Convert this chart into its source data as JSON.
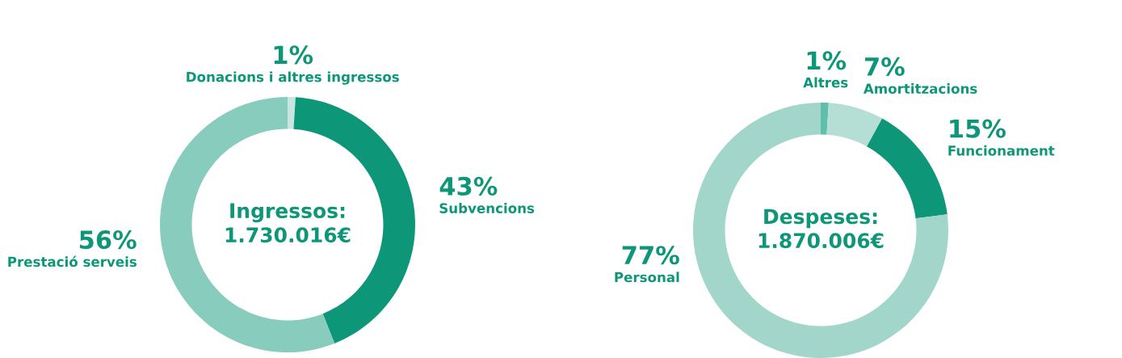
{
  "chart_data": [
    {
      "type": "donut",
      "title": "Ingressos:\n1.730.016€",
      "categories": [
        "Donacions i altres ingressos",
        "Subvencions",
        "Prestació serveis"
      ],
      "values": [
        1,
        43,
        56
      ],
      "colors": [
        "#c8e6df",
        "#0e9678",
        "#88ccbd"
      ],
      "value_labels": [
        "1%",
        "43%",
        "56%"
      ]
    },
    {
      "type": "donut",
      "title": "Despeses:\n1.870.006€",
      "categories": [
        "Altres",
        "Amortitzacions",
        "Funcionament",
        "Personal"
      ],
      "values": [
        1,
        7,
        15,
        77
      ],
      "colors": [
        "#5fbfa9",
        "#b5ded4",
        "#0e9678",
        "#a2d6cb"
      ],
      "value_labels": [
        "1%",
        "7%",
        "15%",
        "77%"
      ]
    }
  ]
}
